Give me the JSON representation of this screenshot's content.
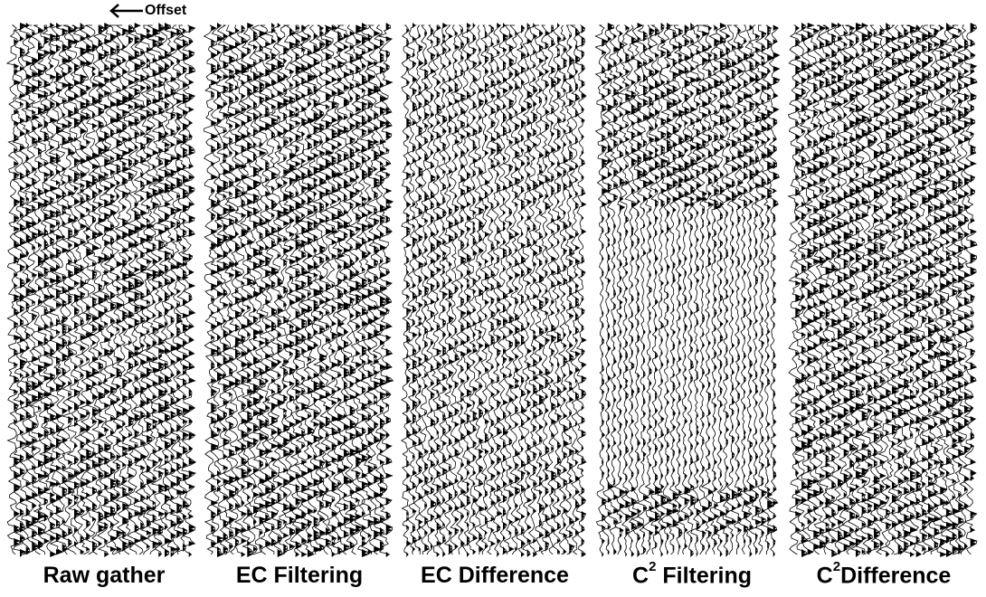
{
  "figure": {
    "offset_label": "Offset",
    "panels": [
      {
        "label": "Raw gather",
        "sup": "",
        "style": "dense",
        "seed": 11
      },
      {
        "label": "EC Filtering",
        "sup": "",
        "style": "dense",
        "seed": 23
      },
      {
        "label": "EC Difference",
        "sup": "",
        "style": "medium",
        "seed": 37
      },
      {
        "label": "Filtering",
        "prefix": "C",
        "sup": "2",
        "style": "filtered",
        "seed": 41
      },
      {
        "label": "Difference",
        "prefix": "C",
        "sup": "2",
        "style": "dense",
        "seed": 53
      }
    ]
  }
}
